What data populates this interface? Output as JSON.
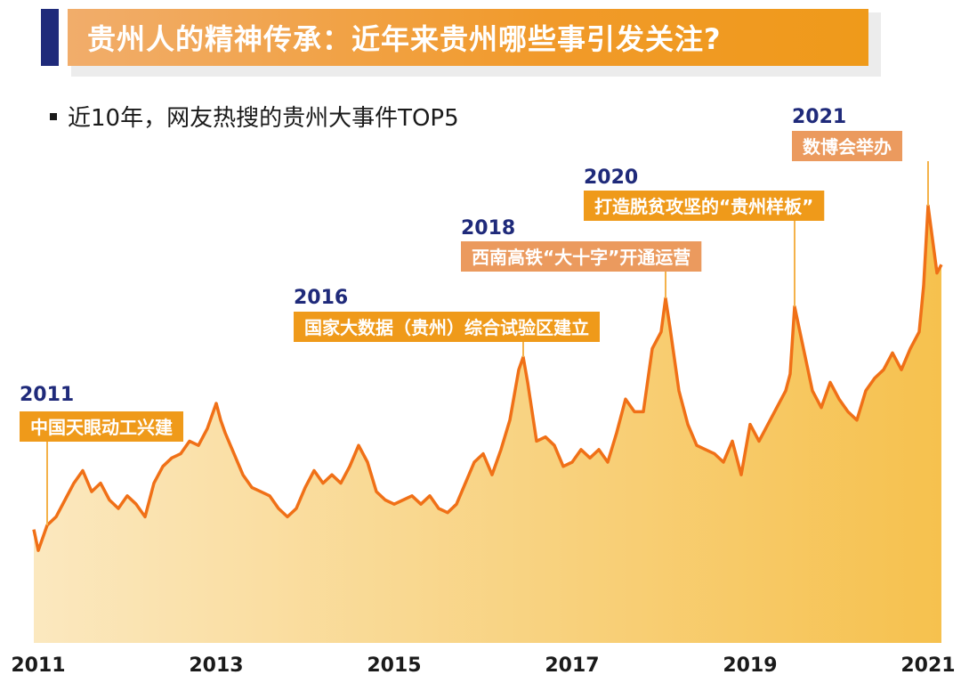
{
  "header": {
    "title": "贵州人的精神传承：近年来贵州哪些事引发关注?",
    "accent_color": "#1f2a7a",
    "bar_color": "#f19a2a"
  },
  "subtitle": "近10年，网友热搜的贵州大事件TOP5",
  "chart_data": {
    "type": "area",
    "title": "近10年，网友热搜的贵州大事件TOP5",
    "xlabel": "",
    "ylabel": "",
    "x_ticks": [
      "2011",
      "2013",
      "2015",
      "2017",
      "2019",
      "2021"
    ],
    "xlim": [
      2010.95,
      2021.15
    ],
    "ylim": [
      0,
      100
    ],
    "grid": false,
    "line_color": "#f07017",
    "fill_gradient": [
      "#fbe8bf",
      "#f6c14e"
    ],
    "series": [
      {
        "points": [
          [
            2010.95,
            27
          ],
          [
            2011.0,
            22
          ],
          [
            2011.1,
            28
          ],
          [
            2011.2,
            30
          ],
          [
            2011.3,
            34
          ],
          [
            2011.4,
            38
          ],
          [
            2011.5,
            41
          ],
          [
            2011.6,
            36
          ],
          [
            2011.7,
            38
          ],
          [
            2011.8,
            34
          ],
          [
            2011.9,
            32
          ],
          [
            2012.0,
            35
          ],
          [
            2012.1,
            33
          ],
          [
            2012.2,
            30
          ],
          [
            2012.3,
            38
          ],
          [
            2012.4,
            42
          ],
          [
            2012.5,
            44
          ],
          [
            2012.6,
            45
          ],
          [
            2012.7,
            48
          ],
          [
            2012.8,
            47
          ],
          [
            2012.9,
            51
          ],
          [
            2013.0,
            57
          ],
          [
            2013.05,
            53
          ],
          [
            2013.1,
            50
          ],
          [
            2013.2,
            45
          ],
          [
            2013.3,
            40
          ],
          [
            2013.4,
            37
          ],
          [
            2013.5,
            36
          ],
          [
            2013.6,
            35
          ],
          [
            2013.7,
            32
          ],
          [
            2013.8,
            30
          ],
          [
            2013.9,
            32
          ],
          [
            2014.0,
            37
          ],
          [
            2014.1,
            41
          ],
          [
            2014.2,
            38
          ],
          [
            2014.3,
            40
          ],
          [
            2014.4,
            38
          ],
          [
            2014.5,
            42
          ],
          [
            2014.6,
            47
          ],
          [
            2014.7,
            43
          ],
          [
            2014.8,
            36
          ],
          [
            2014.9,
            34
          ],
          [
            2015.0,
            33
          ],
          [
            2015.1,
            34
          ],
          [
            2015.2,
            35
          ],
          [
            2015.3,
            33
          ],
          [
            2015.4,
            35
          ],
          [
            2015.5,
            32
          ],
          [
            2015.6,
            31
          ],
          [
            2015.7,
            33
          ],
          [
            2015.8,
            38
          ],
          [
            2015.9,
            43
          ],
          [
            2016.0,
            45
          ],
          [
            2016.1,
            40
          ],
          [
            2016.2,
            46
          ],
          [
            2016.3,
            53
          ],
          [
            2016.4,
            65
          ],
          [
            2016.45,
            68
          ],
          [
            2016.5,
            62
          ],
          [
            2016.6,
            48
          ],
          [
            2016.7,
            49
          ],
          [
            2016.8,
            47
          ],
          [
            2016.9,
            42
          ],
          [
            2017.0,
            43
          ],
          [
            2017.1,
            46
          ],
          [
            2017.2,
            44
          ],
          [
            2017.3,
            46
          ],
          [
            2017.4,
            43
          ],
          [
            2017.5,
            50
          ],
          [
            2017.6,
            58
          ],
          [
            2017.7,
            55
          ],
          [
            2017.8,
            55
          ],
          [
            2017.9,
            70
          ],
          [
            2018.0,
            74
          ],
          [
            2018.05,
            82
          ],
          [
            2018.1,
            75
          ],
          [
            2018.2,
            60
          ],
          [
            2018.3,
            52
          ],
          [
            2018.4,
            47
          ],
          [
            2018.5,
            46
          ],
          [
            2018.6,
            45
          ],
          [
            2018.7,
            43
          ],
          [
            2018.8,
            48
          ],
          [
            2018.9,
            40
          ],
          [
            2019.0,
            52
          ],
          [
            2019.1,
            48
          ],
          [
            2019.2,
            52
          ],
          [
            2019.3,
            56
          ],
          [
            2019.4,
            60
          ],
          [
            2019.45,
            64
          ],
          [
            2019.5,
            80
          ],
          [
            2019.6,
            70
          ],
          [
            2019.7,
            60
          ],
          [
            2019.8,
            56
          ],
          [
            2019.9,
            62
          ],
          [
            2020.0,
            58
          ],
          [
            2020.1,
            55
          ],
          [
            2020.2,
            53
          ],
          [
            2020.3,
            60
          ],
          [
            2020.4,
            63
          ],
          [
            2020.5,
            65
          ],
          [
            2020.6,
            69
          ],
          [
            2020.7,
            65
          ],
          [
            2020.8,
            70
          ],
          [
            2020.9,
            74
          ],
          [
            2020.95,
            85
          ],
          [
            2021.0,
            104
          ],
          [
            2021.05,
            96
          ],
          [
            2021.1,
            88
          ],
          [
            2021.15,
            90
          ]
        ]
      }
    ],
    "annotations": [
      {
        "year": "2011",
        "text": "中国天眼动工兴建",
        "x": 2011.1,
        "peak_y": 28,
        "label_color": "#ef9a1a"
      },
      {
        "year": "2016",
        "text": "国家大数据（贵州）综合试验区建立",
        "x": 2016.45,
        "peak_y": 68,
        "label_color": "#ef9a1a"
      },
      {
        "year": "2018",
        "text": "西南高铁“大十字”开通运营",
        "x": 2018.05,
        "peak_y": 82,
        "label_color": "#eb9a5e"
      },
      {
        "year": "2020",
        "text": "打造脱贫攻坚的“贵州样板”",
        "x": 2019.5,
        "peak_y": 80,
        "label_color": "#ef9a1a"
      },
      {
        "year": "2021",
        "text": "数博会举办",
        "x": 2021.0,
        "peak_y": 104,
        "label_color": "#eb9a5e"
      }
    ]
  }
}
